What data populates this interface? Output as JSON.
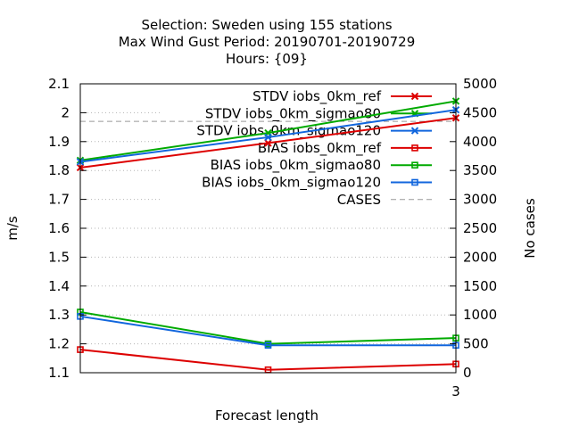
{
  "chart_data": {
    "type": "line",
    "title_lines": [
      "Selection: Sweden using   155 stations",
      "Max Wind Gust   Period: 20190701-20190729",
      "Hours: {09}"
    ],
    "xlabel": "Forecast length",
    "ylabel": "m/s",
    "y2label": "No cases",
    "x": [
      0,
      1.5,
      3
    ],
    "x_ticks": [
      {
        "value": 3,
        "label": "3"
      }
    ],
    "xlim": [
      0,
      3
    ],
    "ylim": [
      1.1,
      2.1
    ],
    "y_ticks": [
      "1.1",
      "1.2",
      "1.3",
      "1.4",
      "1.5",
      "1.6",
      "1.7",
      "1.8",
      "1.9",
      "2",
      "2.1"
    ],
    "y2lim": [
      0,
      5000
    ],
    "y2_ticks": [
      "0",
      "500",
      "1000",
      "1500",
      "2000",
      "2500",
      "3000",
      "3500",
      "4000",
      "4500",
      "5000"
    ],
    "grid": true,
    "legend_position": "top-right",
    "series": [
      {
        "name": "STDV iobs_0km_ref",
        "color": "#dd0000",
        "marker": "x",
        "axis": "y",
        "values": [
          1.81,
          1.895,
          1.982
        ]
      },
      {
        "name": "STDV iobs_0km_sigmao80",
        "color": "#00aa00",
        "marker": "x",
        "axis": "y",
        "values": [
          1.835,
          1.93,
          2.04
        ]
      },
      {
        "name": "STDV iobs_0km_sigmao120",
        "color": "#1166dd",
        "marker": "x",
        "axis": "y",
        "values": [
          1.83,
          1.915,
          2.01
        ]
      },
      {
        "name": "BIAS iobs_0km_ref",
        "color": "#dd0000",
        "marker": "square",
        "axis": "y",
        "values": [
          1.18,
          1.11,
          1.13
        ]
      },
      {
        "name": "BIAS iobs_0km_sigmao80",
        "color": "#00aa00",
        "marker": "square",
        "axis": "y",
        "values": [
          1.31,
          1.2,
          1.22
        ]
      },
      {
        "name": "BIAS iobs_0km_sigmao120",
        "color": "#1166dd",
        "marker": "square",
        "axis": "y",
        "values": [
          1.295,
          1.195,
          1.195
        ]
      },
      {
        "name": "CASES",
        "color": "#999999",
        "marker": "none",
        "dashed": true,
        "axis": "y2",
        "values": [
          4350,
          4350,
          4350
        ]
      }
    ]
  }
}
